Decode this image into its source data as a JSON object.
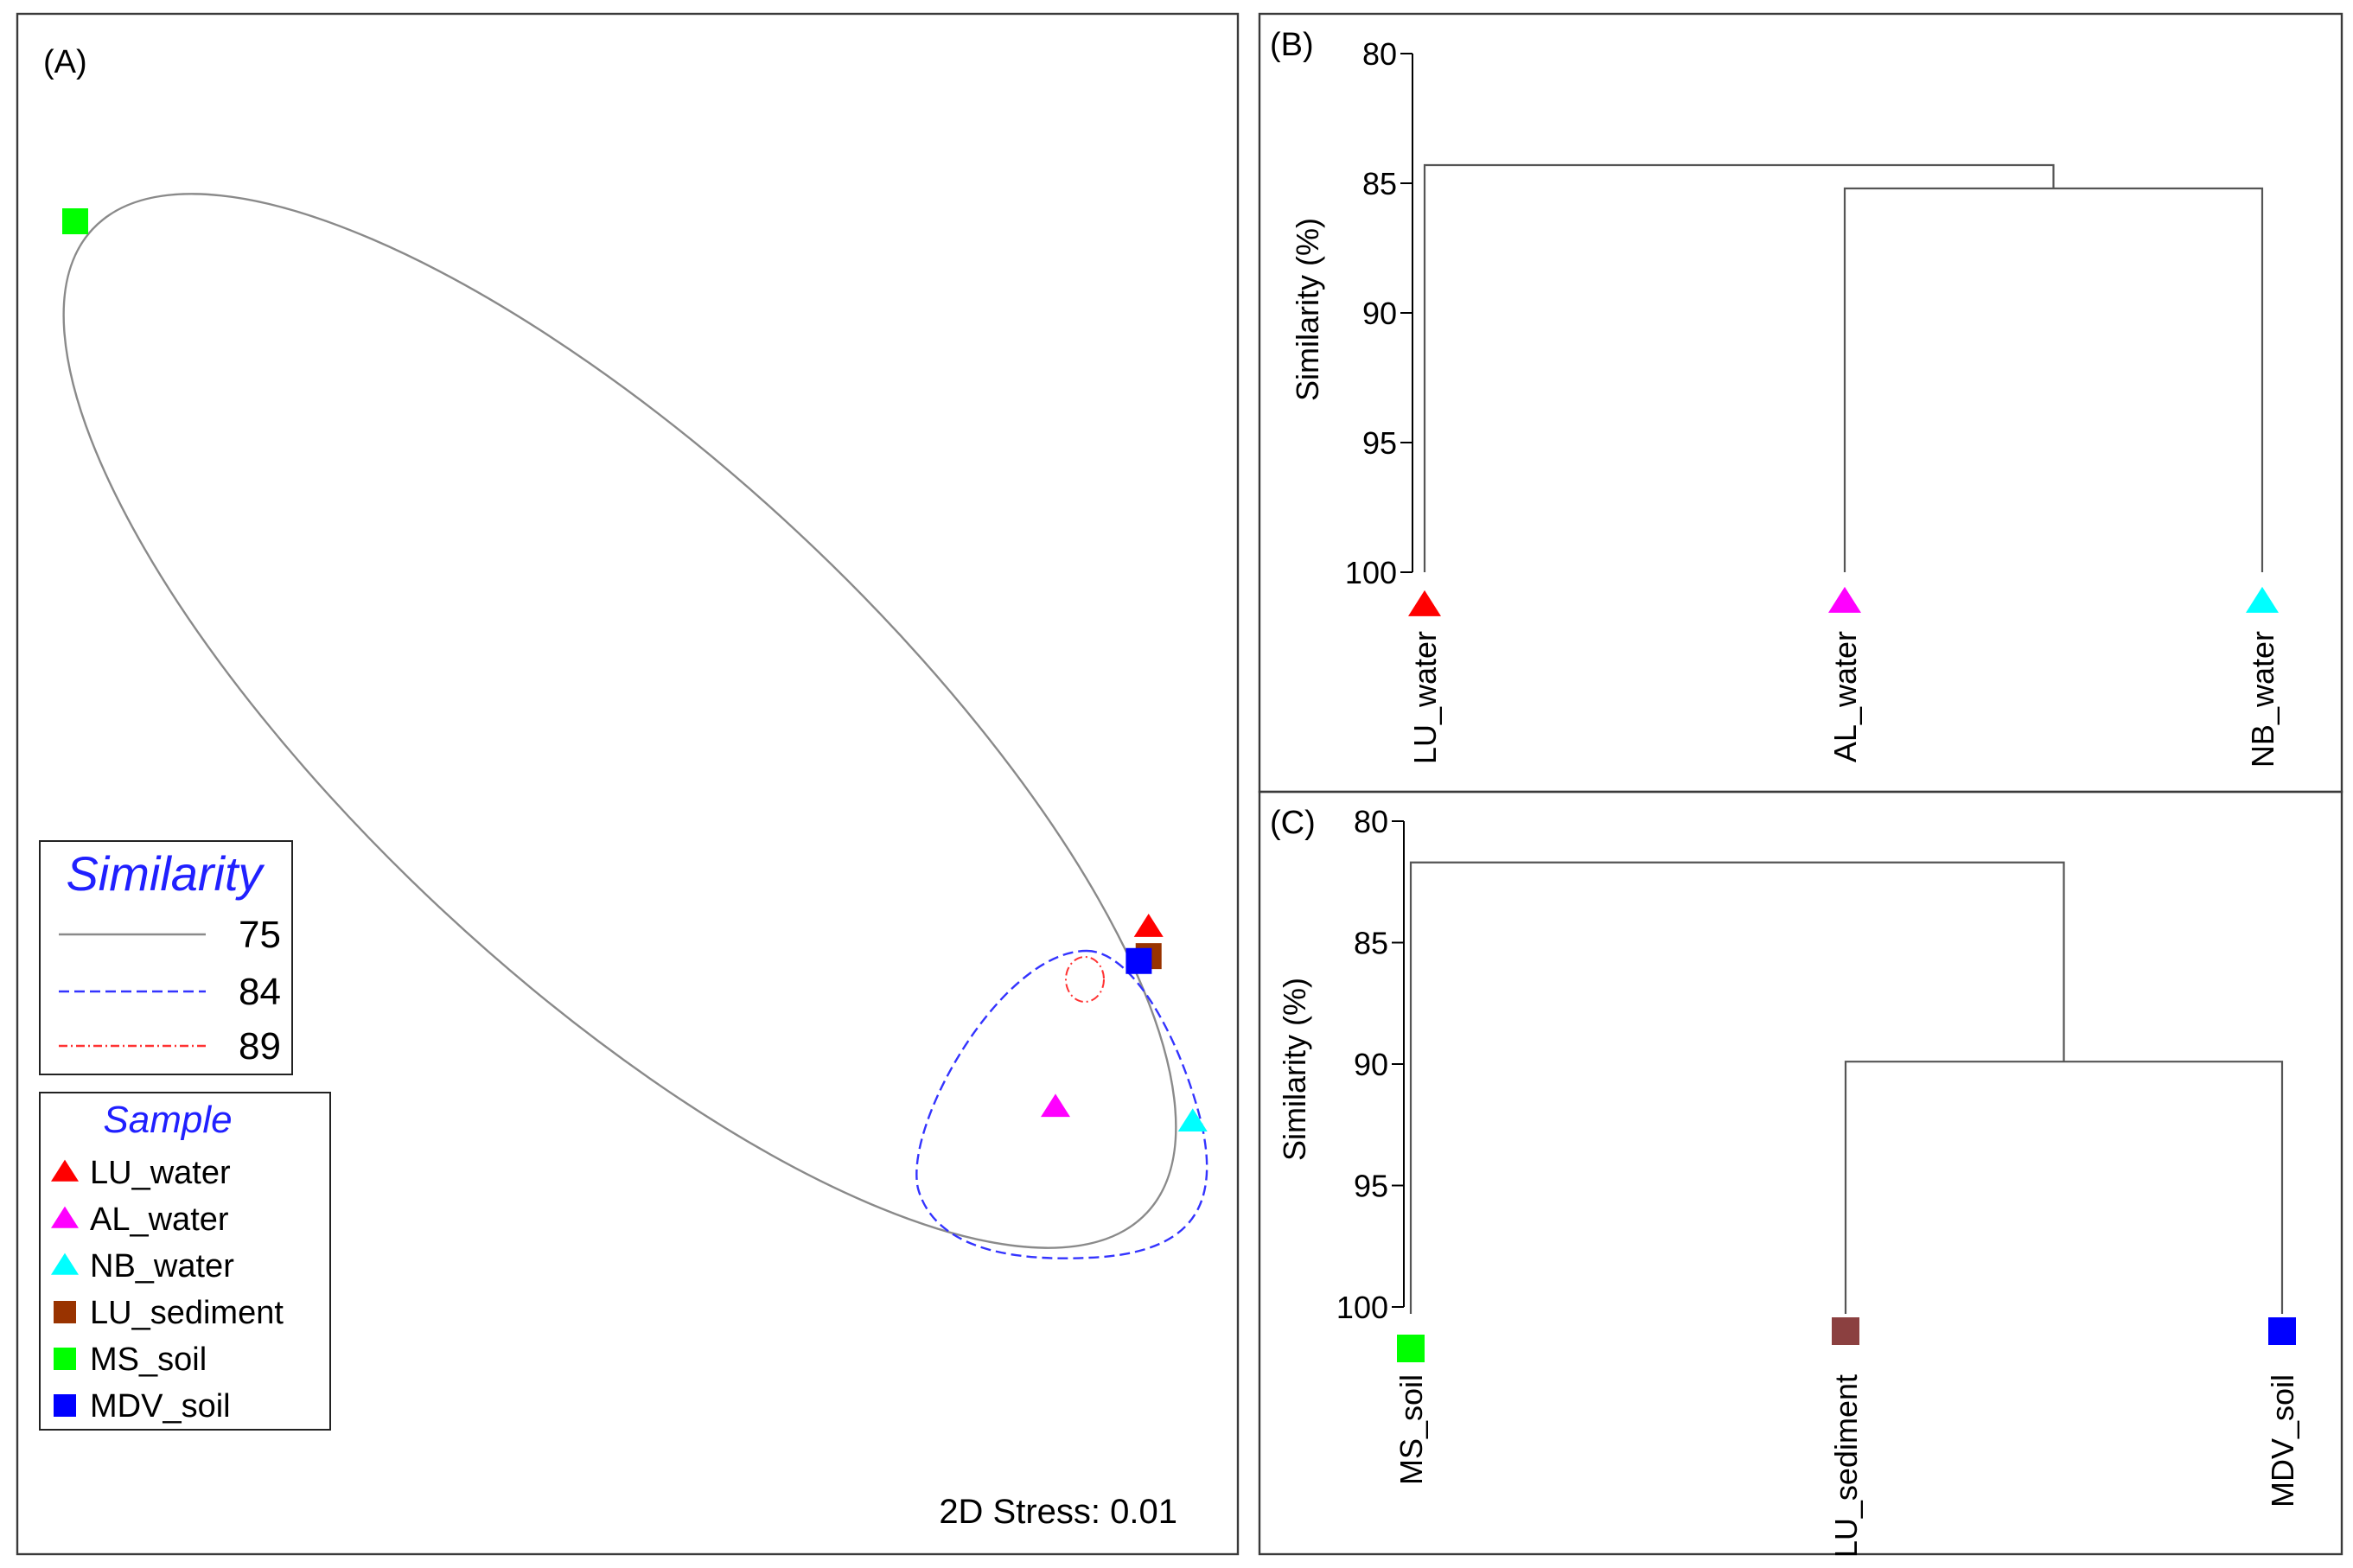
{
  "chart_data": [
    {
      "panel": "(A)",
      "type": "scatter",
      "stress_label": "2D Stress: 0.01",
      "legend_similarity": {
        "title": "Similarity",
        "entries": [
          {
            "value": "75",
            "style": "solid",
            "color": "#8a8a8a"
          },
          {
            "value": "84",
            "style": "dashed",
            "color": "#3333ff"
          },
          {
            "value": "89",
            "style": "dashdot",
            "color": "#ff3333"
          }
        ]
      },
      "legend_sample": {
        "title": "Sample",
        "entries": [
          {
            "label": "LU_water",
            "marker": "triangle",
            "color": "#ff0000"
          },
          {
            "label": "AL_water",
            "marker": "triangle",
            "color": "#ff00ff"
          },
          {
            "label": "NB_water",
            "marker": "triangle",
            "color": "#00ffff"
          },
          {
            "label": "LU_sediment",
            "marker": "square",
            "color": "#993300"
          },
          {
            "label": "MS_soil",
            "marker": "square",
            "color": "#00ff00"
          },
          {
            "label": "MDV_soil",
            "marker": "square",
            "color": "#0000ff"
          }
        ]
      },
      "points": [
        {
          "label": "MS_soil",
          "x": -1.55,
          "y": 1.25
        },
        {
          "label": "AL_water",
          "x": 0.45,
          "y": -0.57
        },
        {
          "label": "NB_water",
          "x": 0.73,
          "y": -0.6
        },
        {
          "label": "LU_water",
          "x": 0.64,
          "y": -0.2
        },
        {
          "label": "LU_sediment",
          "x": 0.64,
          "y": -0.26
        },
        {
          "label": "MDV_soil",
          "x": 0.62,
          "y": -0.27
        }
      ]
    },
    {
      "panel": "(B)",
      "type": "dendrogram",
      "ylabel": "Similarity (%)",
      "yticks": [
        "80",
        "85",
        "90",
        "95",
        "100"
      ],
      "ylim": [
        80,
        100
      ],
      "leaves": [
        {
          "label": "LU_water",
          "marker": "triangle",
          "color": "#ff0000"
        },
        {
          "label": "AL_water",
          "marker": "triangle",
          "color": "#ff00ff"
        },
        {
          "label": "NB_water",
          "marker": "triangle",
          "color": "#00ffff"
        }
      ],
      "merges": [
        {
          "members": [
            "AL_water",
            "NB_water"
          ],
          "similarity": 85.2
        },
        {
          "members": [
            "LU_water",
            "AL_water",
            "NB_water"
          ],
          "similarity": 84.3
        }
      ]
    },
    {
      "panel": "(C)",
      "type": "dendrogram",
      "ylabel": "Similarity (%)",
      "yticks": [
        "80",
        "85",
        "90",
        "95",
        "100"
      ],
      "ylim": [
        80,
        100
      ],
      "leaves": [
        {
          "label": "MS_soil",
          "marker": "square",
          "color": "#00ff00"
        },
        {
          "label": "LU_sediment",
          "marker": "square",
          "color": "#8b4040"
        },
        {
          "label": "MDV_soil",
          "marker": "square",
          "color": "#0000ff"
        }
      ],
      "merges": [
        {
          "members": [
            "LU_sediment",
            "MDV_soil"
          ],
          "similarity": 89.9
        },
        {
          "members": [
            "MS_soil",
            "LU_sediment",
            "MDV_soil"
          ],
          "similarity": 81.7
        }
      ]
    }
  ]
}
